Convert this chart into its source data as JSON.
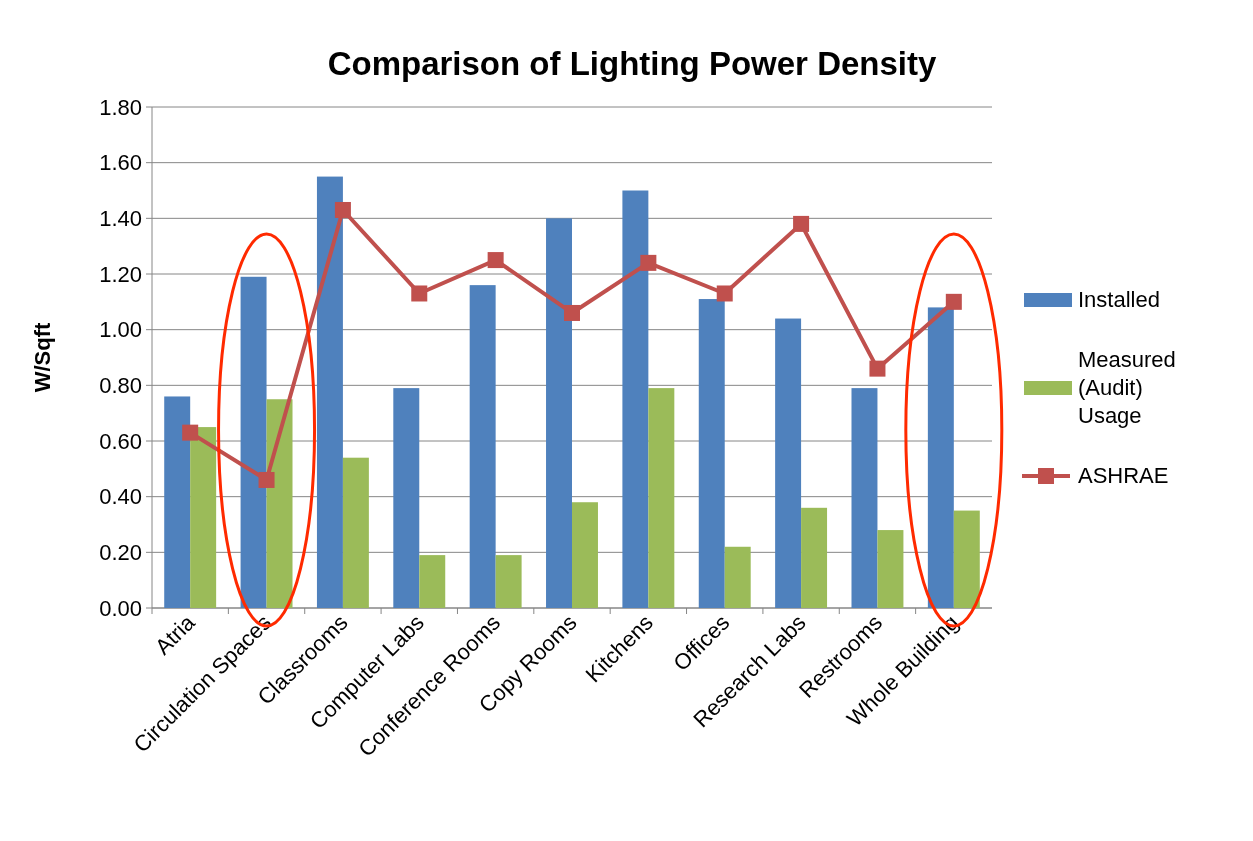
{
  "chart_data": {
    "type": "bar",
    "title": "Comparison of Lighting Power Density",
    "ylabel": "W/Sqft",
    "categories": [
      "Atria",
      "Circulation Spaces",
      "Classrooms",
      "Computer Labs",
      "Conference Rooms",
      "Copy Rooms",
      "Kitchens",
      "Offices",
      "Research Labs",
      "Restrooms",
      "Whole Building"
    ],
    "series": [
      {
        "name": "Installed",
        "color": "#4f81bd",
        "values": [
          0.76,
          1.19,
          1.55,
          0.79,
          1.16,
          1.4,
          1.5,
          1.11,
          1.04,
          0.79,
          1.08
        ]
      },
      {
        "name": "Measured (Audit) Usage",
        "color": "#9bbb59",
        "values": [
          0.65,
          0.75,
          0.54,
          0.19,
          0.19,
          0.38,
          0.79,
          0.22,
          0.36,
          0.28,
          0.35
        ]
      },
      {
        "name": "ASHRAE",
        "type": "line",
        "color": "#c0504d",
        "marker": "square",
        "line_style": "solid",
        "values": [
          0.63,
          0.46,
          1.43,
          1.13,
          1.25,
          1.06,
          1.24,
          1.13,
          1.38,
          0.86,
          1.1
        ]
      }
    ],
    "ylim": [
      0,
      1.8
    ],
    "yticks": [
      {
        "value": 0,
        "label": "0.00"
      },
      {
        "value": 0.2,
        "label": "0.20"
      },
      {
        "value": 0.4,
        "label": "0.40"
      },
      {
        "value": 0.6,
        "label": "0.60"
      },
      {
        "value": 0.8,
        "label": "0.80"
      },
      {
        "value": 1,
        "label": "1.00"
      },
      {
        "value": 1.2,
        "label": "1.20"
      },
      {
        "value": 1.4,
        "label": "1.40"
      },
      {
        "value": 1.6,
        "label": "1.60"
      },
      {
        "value": 1.8,
        "label": "1.80"
      }
    ],
    "grid": "y",
    "legend": "right"
  }
}
